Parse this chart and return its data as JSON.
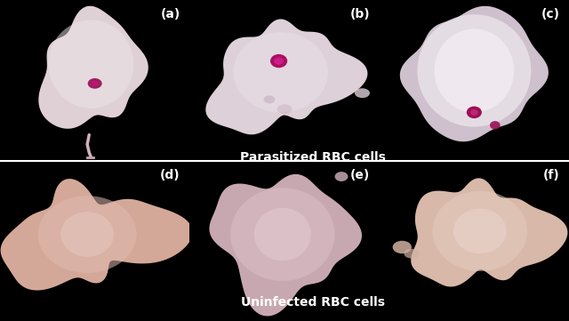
{
  "background_color": "#000000",
  "row1_label": "Parasitized RBC cells",
  "row2_label": "Uninfected RBC cells",
  "label_fontsize": 10,
  "label_color": "#ffffff",
  "label_fontweight": "bold",
  "subfig_labels": [
    "(a)",
    "(b)",
    "(c)",
    "(d)",
    "(e)",
    "(f)"
  ],
  "subfig_label_fontsize": 10,
  "subfig_label_color": "#ffffff",
  "figsize": [
    6.4,
    3.61
  ],
  "dpi": 100
}
